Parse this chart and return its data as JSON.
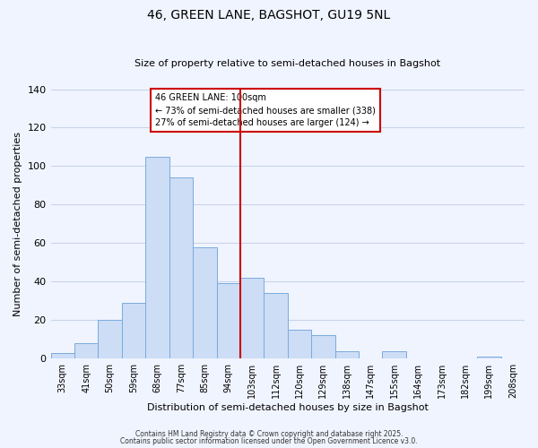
{
  "title": "46, GREEN LANE, BAGSHOT, GU19 5NL",
  "subtitle": "Size of property relative to semi-detached houses in Bagshot",
  "xlabel": "Distribution of semi-detached houses by size in Bagshot",
  "ylabel": "Number of semi-detached properties",
  "bar_labels": [
    "33sqm",
    "41sqm",
    "50sqm",
    "59sqm",
    "68sqm",
    "77sqm",
    "85sqm",
    "94sqm",
    "103sqm",
    "112sqm",
    "120sqm",
    "129sqm",
    "138sqm",
    "147sqm",
    "155sqm",
    "164sqm",
    "173sqm",
    "182sqm",
    "199sqm",
    "208sqm"
  ],
  "bar_heights": [
    3,
    8,
    20,
    29,
    105,
    94,
    58,
    39,
    42,
    34,
    15,
    12,
    4,
    0,
    4,
    0,
    0,
    0,
    1,
    0
  ],
  "bar_color": "#ccddf5",
  "bar_edge_color": "#7aabde",
  "vline_x_index": 8,
  "vline_color": "#cc0000",
  "ylim": [
    0,
    140
  ],
  "yticks": [
    0,
    20,
    40,
    60,
    80,
    100,
    120,
    140
  ],
  "annotation_title": "46 GREEN LANE: 100sqm",
  "annotation_line1": "← 73% of semi-detached houses are smaller (338)",
  "annotation_line2": "27% of semi-detached houses are larger (124) →",
  "footer1": "Contains HM Land Registry data © Crown copyright and database right 2025.",
  "footer2": "Contains public sector information licensed under the Open Government Licence v3.0.",
  "bg_color": "#f0f4ff",
  "grid_color": "#c8d4e8"
}
